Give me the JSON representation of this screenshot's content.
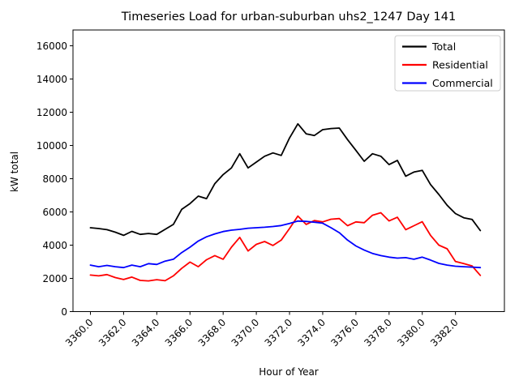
{
  "chart_data": {
    "type": "line",
    "title": "Timeseries Load for urban-suburban uhs2_1247  Day 141",
    "xlabel": "Hour of Year",
    "ylabel": "kW total",
    "grid": false,
    "legend": {
      "position": "upper right"
    },
    "xlim": [
      3358.95,
      3384.95
    ],
    "ylim": [
      0,
      16950
    ],
    "x_ticks": [
      3360,
      3362,
      3364,
      3366,
      3368,
      3370,
      3372,
      3374,
      3376,
      3378,
      3380,
      3382
    ],
    "x_tick_labels": [
      "3360.0",
      "3362.0",
      "3364.0",
      "3366.0",
      "3368.0",
      "3370.0",
      "3372.0",
      "3374.0",
      "3376.0",
      "3378.0",
      "3380.0",
      "3382.0"
    ],
    "y_ticks": [
      0,
      2000,
      4000,
      6000,
      8000,
      10000,
      12000,
      14000,
      16000
    ],
    "y_tick_labels": [
      "0",
      "2000",
      "4000",
      "6000",
      "8000",
      "10000",
      "12000",
      "14000",
      "16000"
    ],
    "x": [
      3360,
      3360.5,
      3361,
      3361.5,
      3362,
      3362.5,
      3363,
      3363.5,
      3364,
      3364.5,
      3365,
      3365.5,
      3366,
      3366.5,
      3367,
      3367.5,
      3368,
      3368.5,
      3369,
      3369.5,
      3370,
      3370.5,
      3371,
      3371.5,
      3372,
      3372.5,
      3373,
      3373.5,
      3374,
      3374.5,
      3375,
      3375.5,
      3376,
      3376.5,
      3377,
      3377.5,
      3378,
      3378.5,
      3379,
      3379.5,
      3380,
      3380.5,
      3381,
      3381.5,
      3382,
      3382.5,
      3383,
      3383.5
    ],
    "series": [
      {
        "name": "Total",
        "color": "#000000",
        "values": [
          5050,
          5000,
          4930,
          4780,
          4590,
          4830,
          4650,
          4700,
          4650,
          4950,
          5250,
          6150,
          6500,
          6950,
          6800,
          7700,
          8250,
          8650,
          9500,
          8650,
          9000,
          9350,
          9550,
          9400,
          10450,
          11300,
          10700,
          10600,
          10950,
          11020,
          11050,
          10350,
          9700,
          9050,
          9500,
          9350,
          8850,
          9100,
          8150,
          8400,
          8500,
          7650,
          7050,
          6400,
          5900,
          5650,
          5550,
          4880
        ]
      },
      {
        "name": "Residential",
        "color": "#ff0000",
        "values": [
          2200,
          2150,
          2230,
          2050,
          1930,
          2080,
          1880,
          1850,
          1920,
          1860,
          2150,
          2600,
          2980,
          2700,
          3120,
          3370,
          3150,
          3880,
          4470,
          3650,
          4050,
          4220,
          3980,
          4300,
          5000,
          5750,
          5250,
          5480,
          5400,
          5560,
          5600,
          5170,
          5400,
          5350,
          5800,
          5950,
          5460,
          5680,
          4930,
          5170,
          5410,
          4590,
          4000,
          3780,
          3020,
          2890,
          2750,
          2180
        ]
      },
      {
        "name": "Commercial",
        "color": "#0000ff",
        "values": [
          2800,
          2700,
          2780,
          2700,
          2650,
          2800,
          2700,
          2890,
          2840,
          3040,
          3150,
          3550,
          3880,
          4250,
          4500,
          4680,
          4820,
          4900,
          4950,
          5020,
          5050,
          5080,
          5120,
          5180,
          5300,
          5450,
          5430,
          5380,
          5320,
          5050,
          4750,
          4300,
          3950,
          3700,
          3500,
          3370,
          3280,
          3220,
          3250,
          3150,
          3280,
          3100,
          2900,
          2800,
          2730,
          2700,
          2680,
          2650
        ]
      }
    ]
  }
}
